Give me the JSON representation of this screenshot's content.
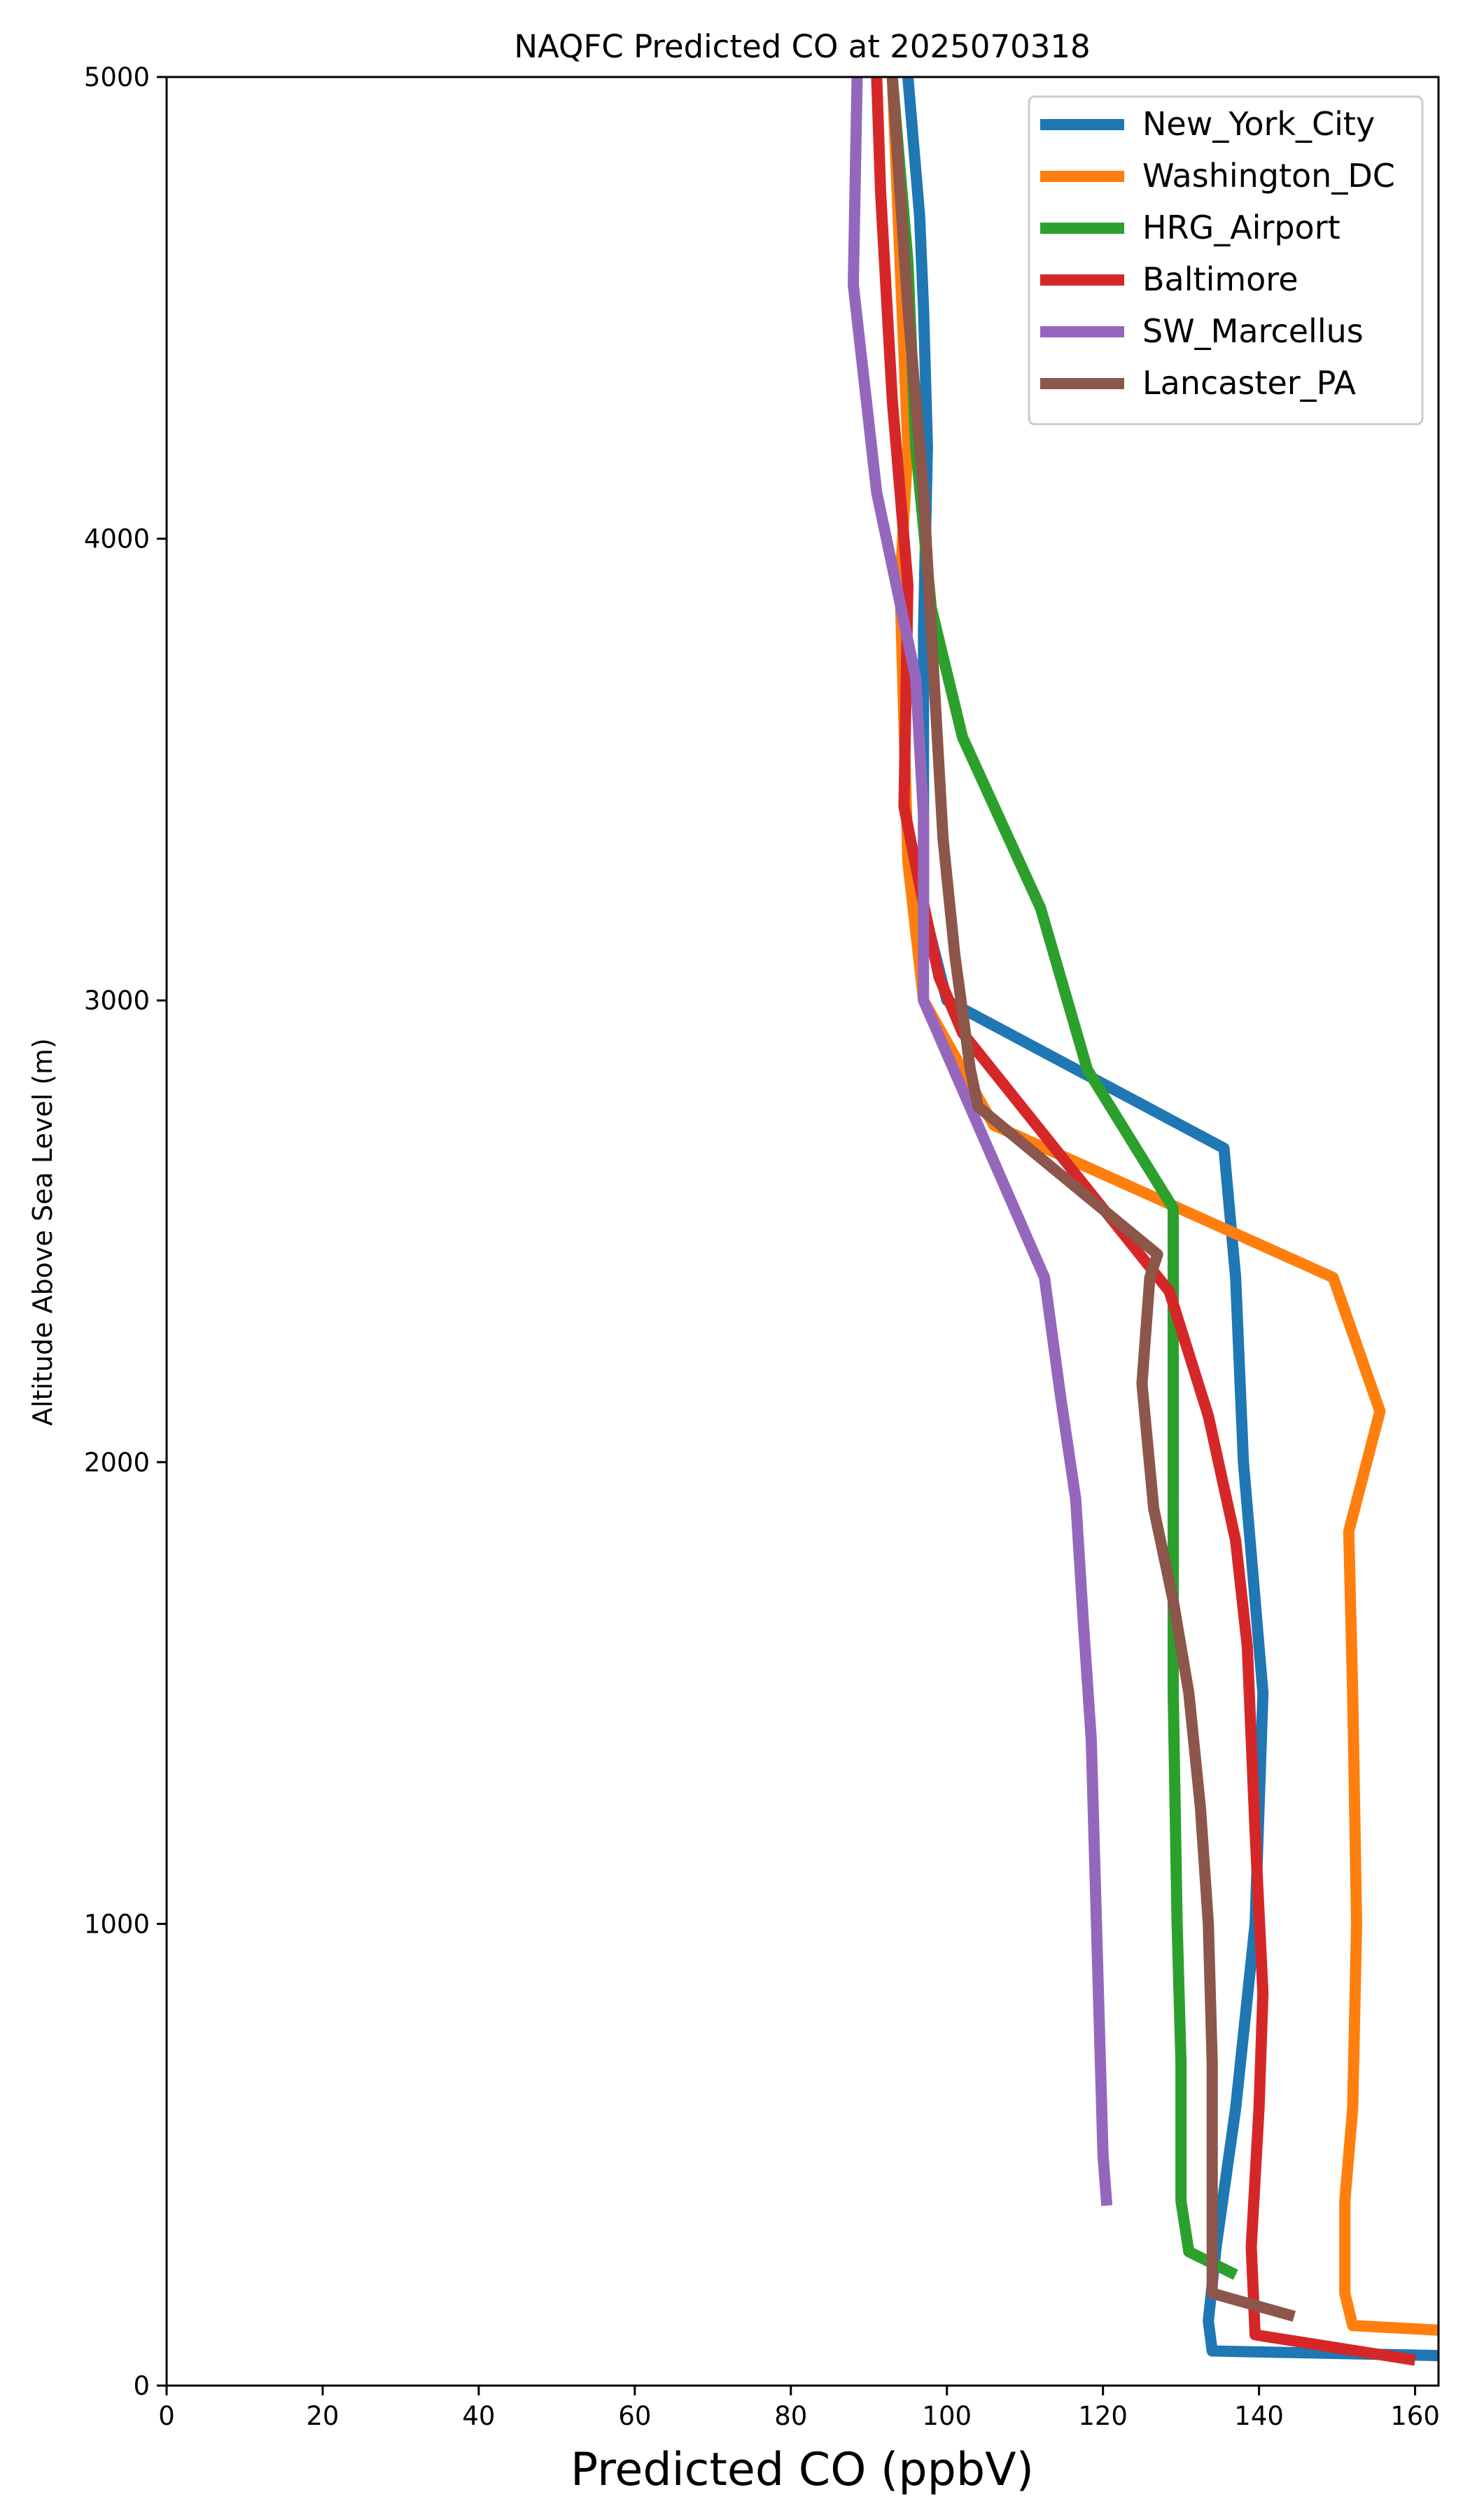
{
  "chart_data": {
    "type": "line",
    "title": "NAQFC Predicted CO at 2025070318",
    "xlabel": "Predicted CO (ppbV)",
    "ylabel": "Altitude Above Sea Level (m)",
    "xlim": [
      0,
      163
    ],
    "ylim": [
      0,
      5000
    ],
    "xticks": [
      0,
      20,
      40,
      60,
      80,
      100,
      120,
      140,
      160
    ],
    "yticks": [
      0,
      1000,
      2000,
      3000,
      4000,
      5000
    ],
    "grid": false,
    "legend_position": "top-right",
    "series": [
      {
        "name": "New_York_City",
        "color": "#1f77b4",
        "points": [
          [
            163,
            65
          ],
          [
            134,
            75
          ],
          [
            133.5,
            140
          ],
          [
            134.5,
            300
          ],
          [
            137,
            600
          ],
          [
            139.5,
            1000
          ],
          [
            140.5,
            1500
          ],
          [
            139,
            1800
          ],
          [
            138,
            2000
          ],
          [
            137,
            2400
          ],
          [
            135.5,
            2680
          ],
          [
            100,
            3000
          ],
          [
            97,
            3200
          ],
          [
            97,
            3800
          ],
          [
            97.5,
            4200
          ],
          [
            97,
            4500
          ],
          [
            96.5,
            4700
          ],
          [
            95,
            5000
          ]
        ]
      },
      {
        "name": "Washington_DC",
        "color": "#ff7f0e",
        "points": [
          [
            163,
            120
          ],
          [
            152,
            130
          ],
          [
            151,
            200
          ],
          [
            151,
            400
          ],
          [
            152,
            600
          ],
          [
            152.5,
            1000
          ],
          [
            152,
            1500
          ],
          [
            151.5,
            1850
          ],
          [
            155.5,
            2110
          ],
          [
            149.5,
            2400
          ],
          [
            106,
            2730
          ],
          [
            97,
            3000
          ],
          [
            95,
            3300
          ],
          [
            94,
            3900
          ],
          [
            95,
            4200
          ],
          [
            94,
            4600
          ],
          [
            93,
            5000
          ]
        ]
      },
      {
        "name": "HRG_Airport",
        "color": "#2ca02c",
        "points": [
          [
            137,
            240
          ],
          [
            131,
            290
          ],
          [
            130,
            400
          ],
          [
            130,
            700
          ],
          [
            129.5,
            1000
          ],
          [
            129,
            1500
          ],
          [
            129,
            2000
          ],
          [
            129,
            2400
          ],
          [
            129,
            2550
          ],
          [
            118,
            2850
          ],
          [
            112,
            3200
          ],
          [
            102,
            3570
          ],
          [
            98,
            3850
          ],
          [
            96,
            4200
          ],
          [
            95,
            4600
          ],
          [
            93,
            5000
          ]
        ]
      },
      {
        "name": "Baltimore",
        "color": "#d62728",
        "points": [
          [
            160,
            55
          ],
          [
            139.5,
            110
          ],
          [
            139,
            300
          ],
          [
            140,
            600
          ],
          [
            140.5,
            850
          ],
          [
            139.5,
            1200
          ],
          [
            138.5,
            1600
          ],
          [
            137,
            1830
          ],
          [
            133.5,
            2100
          ],
          [
            128.5,
            2370
          ],
          [
            102,
            2930
          ],
          [
            99,
            3050
          ],
          [
            96.5,
            3250
          ],
          [
            94.5,
            3420
          ],
          [
            95,
            3900
          ],
          [
            93,
            4300
          ],
          [
            91.5,
            4750
          ],
          [
            91,
            5000
          ]
        ]
      },
      {
        "name": "SW_Marcellus",
        "color": "#9467bd",
        "points": [
          [
            120.5,
            390
          ],
          [
            120,
            500
          ],
          [
            119.5,
            800
          ],
          [
            119,
            1100
          ],
          [
            118.5,
            1400
          ],
          [
            117.5,
            1650
          ],
          [
            116.5,
            1920
          ],
          [
            114.5,
            2150
          ],
          [
            112.5,
            2400
          ],
          [
            97,
            3000
          ],
          [
            97,
            3400
          ],
          [
            96,
            3700
          ],
          [
            91,
            4100
          ],
          [
            88,
            4550
          ],
          [
            88.5,
            5000
          ]
        ]
      },
      {
        "name": "Lancaster_PA",
        "color": "#8c564b",
        "points": [
          [
            144.5,
            150
          ],
          [
            134,
            200
          ],
          [
            134,
            400
          ],
          [
            134,
            700
          ],
          [
            133.5,
            1000
          ],
          [
            132.5,
            1250
          ],
          [
            131,
            1500
          ],
          [
            129,
            1700
          ],
          [
            126.5,
            1900
          ],
          [
            125,
            2170
          ],
          [
            126,
            2400
          ],
          [
            127,
            2450
          ],
          [
            104,
            2770
          ],
          [
            103,
            2850
          ],
          [
            101,
            3100
          ],
          [
            99.5,
            3350
          ],
          [
            98,
            3800
          ],
          [
            97,
            4100
          ],
          [
            95,
            4500
          ],
          [
            93,
            5000
          ]
        ]
      }
    ]
  }
}
